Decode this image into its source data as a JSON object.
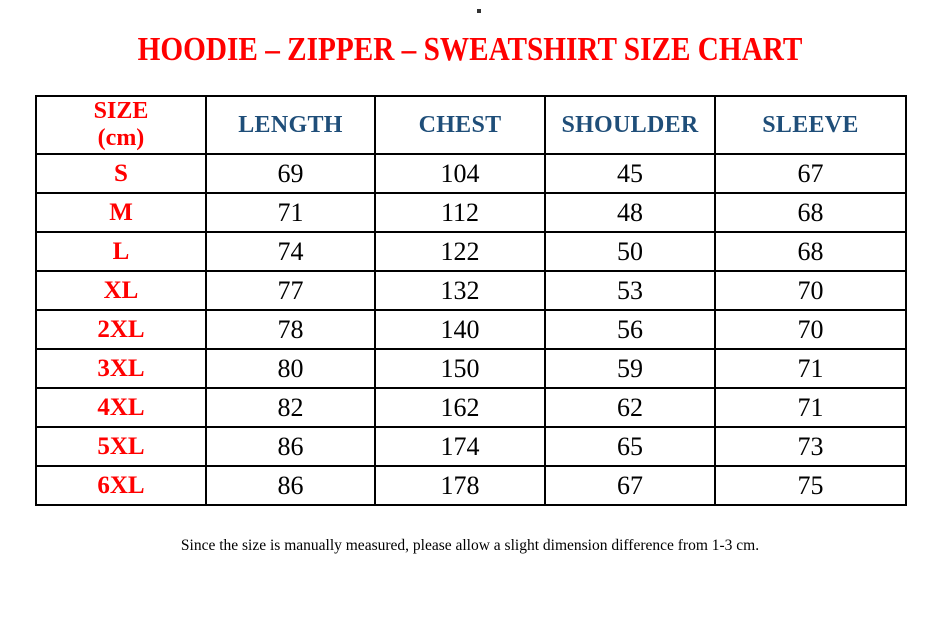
{
  "page": {
    "top_dot": ".",
    "title": "HOODIE – ZIPPER – SWEATSHIRT SIZE CHART",
    "footnote": "Since the size is manually measured, please allow a slight dimension difference from 1-3 cm."
  },
  "colors": {
    "title_red": "#ff0000",
    "size_label_red": "#ff0000",
    "header_blue": "#1f4e79",
    "value_black": "#000000",
    "table_border": "#000000",
    "background": "#ffffff"
  },
  "table": {
    "header": {
      "size_line1": "SIZE",
      "size_line2": "(cm)",
      "columns": [
        "LENGTH",
        "CHEST",
        "SHOULDER",
        "SLEEVE"
      ]
    },
    "rows": [
      {
        "size": "S",
        "length": "69",
        "chest": "104",
        "shoulder": "45",
        "sleeve": "67"
      },
      {
        "size": "M",
        "length": "71",
        "chest": "112",
        "shoulder": "48",
        "sleeve": "68"
      },
      {
        "size": "L",
        "length": "74",
        "chest": "122",
        "shoulder": "50",
        "sleeve": "68"
      },
      {
        "size": "XL",
        "length": "77",
        "chest": "132",
        "shoulder": "53",
        "sleeve": "70"
      },
      {
        "size": "2XL",
        "length": "78",
        "chest": "140",
        "shoulder": "56",
        "sleeve": "70"
      },
      {
        "size": "3XL",
        "length": "80",
        "chest": "150",
        "shoulder": "59",
        "sleeve": "71"
      },
      {
        "size": "4XL",
        "length": "82",
        "chest": "162",
        "shoulder": "62",
        "sleeve": "71"
      },
      {
        "size": "5XL",
        "length": "86",
        "chest": "174",
        "shoulder": "65",
        "sleeve": "73"
      },
      {
        "size": "6XL",
        "length": "86",
        "chest": "178",
        "shoulder": "67",
        "sleeve": "75"
      }
    ]
  },
  "chart_data": {
    "type": "table",
    "title": "HOODIE – ZIPPER – SWEATSHIRT SIZE CHART",
    "columns": [
      "SIZE (cm)",
      "LENGTH",
      "CHEST",
      "SHOULDER",
      "SLEEVE"
    ],
    "rows": [
      [
        "S",
        69,
        104,
        45,
        67
      ],
      [
        "M",
        71,
        112,
        48,
        68
      ],
      [
        "L",
        74,
        122,
        50,
        68
      ],
      [
        "XL",
        77,
        132,
        53,
        70
      ],
      [
        "2XL",
        78,
        140,
        56,
        70
      ],
      [
        "3XL",
        80,
        150,
        59,
        71
      ],
      [
        "4XL",
        82,
        162,
        62,
        71
      ],
      [
        "5XL",
        86,
        174,
        65,
        73
      ],
      [
        "6XL",
        86,
        178,
        67,
        75
      ]
    ],
    "footnote": "Since the size is manually measured, please allow a slight dimension difference from 1-3 cm."
  }
}
